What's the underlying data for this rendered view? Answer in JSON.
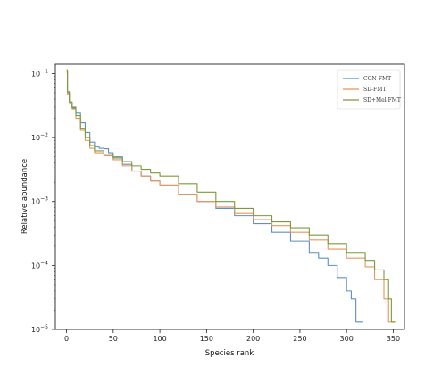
{
  "chart_data": {
    "type": "line",
    "xlabel": "Species rank",
    "ylabel": "Relative abundance",
    "xlim": [
      -12,
      362
    ],
    "ylim": [
      1e-05,
      0.14
    ],
    "yscale": "log",
    "x_ticks": [
      0,
      50,
      100,
      150,
      200,
      250,
      300,
      350
    ],
    "y_ticks": [
      {
        "value": 1e-05,
        "base": "10",
        "exp": "−5"
      },
      {
        "value": 0.0001,
        "base": "10",
        "exp": "−4"
      },
      {
        "value": 0.001,
        "base": "10",
        "exp": "−3"
      },
      {
        "value": 0.01,
        "base": "10",
        "exp": "−2"
      },
      {
        "value": 0.1,
        "base": "10",
        "exp": "−1"
      }
    ],
    "grid": false,
    "legend_position": "top-right",
    "series": [
      {
        "name": "CON-FMT",
        "color": "#5b8fc7",
        "points": [
          [
            0,
            0.11
          ],
          [
            1,
            0.05
          ],
          [
            3,
            0.036
          ],
          [
            6,
            0.03
          ],
          [
            10,
            0.024
          ],
          [
            15,
            0.017
          ],
          [
            20,
            0.012
          ],
          [
            25,
            0.0085
          ],
          [
            30,
            0.0072
          ],
          [
            35,
            0.0068
          ],
          [
            40,
            0.0067
          ],
          [
            45,
            0.0058
          ],
          [
            50,
            0.005
          ],
          [
            60,
            0.0038
          ],
          [
            70,
            0.003
          ],
          [
            80,
            0.0025
          ],
          [
            90,
            0.0021
          ],
          [
            100,
            0.0018
          ],
          [
            120,
            0.0013
          ],
          [
            140,
            0.001
          ],
          [
            160,
            0.00078
          ],
          [
            180,
            0.0006
          ],
          [
            200,
            0.00045
          ],
          [
            220,
            0.00033
          ],
          [
            240,
            0.00024
          ],
          [
            260,
            0.00016
          ],
          [
            270,
            0.00013
          ],
          [
            280,
            0.0001
          ],
          [
            290,
            6.5e-05
          ],
          [
            300,
            4e-05
          ],
          [
            305,
            3e-05
          ],
          [
            310,
            1.3e-05
          ],
          [
            318,
            1.3e-05
          ]
        ]
      },
      {
        "name": "SD-FMT",
        "color": "#e8955a",
        "points": [
          [
            0,
            0.105
          ],
          [
            1,
            0.048
          ],
          [
            3,
            0.035
          ],
          [
            6,
            0.028
          ],
          [
            10,
            0.02
          ],
          [
            15,
            0.013
          ],
          [
            20,
            0.009
          ],
          [
            25,
            0.0068
          ],
          [
            30,
            0.0058
          ],
          [
            40,
            0.0052
          ],
          [
            50,
            0.0045
          ],
          [
            60,
            0.0036
          ],
          [
            70,
            0.003
          ],
          [
            80,
            0.0025
          ],
          [
            90,
            0.0021
          ],
          [
            100,
            0.0018
          ],
          [
            120,
            0.0013
          ],
          [
            140,
            0.001
          ],
          [
            160,
            0.00082
          ],
          [
            180,
            0.00065
          ],
          [
            200,
            0.00052
          ],
          [
            220,
            0.00042
          ],
          [
            240,
            0.00033
          ],
          [
            260,
            0.00025
          ],
          [
            280,
            0.00018
          ],
          [
            300,
            0.00013
          ],
          [
            320,
            9.5e-05
          ],
          [
            330,
            6e-05
          ],
          [
            340,
            3e-05
          ],
          [
            345,
            1.3e-05
          ],
          [
            352,
            1.3e-05
          ]
        ]
      },
      {
        "name": "SD+Mel-FMT",
        "color": "#7a9a3c",
        "points": [
          [
            0,
            0.115
          ],
          [
            1,
            0.052
          ],
          [
            3,
            0.036
          ],
          [
            6,
            0.029
          ],
          [
            10,
            0.022
          ],
          [
            15,
            0.014
          ],
          [
            20,
            0.01
          ],
          [
            25,
            0.0075
          ],
          [
            30,
            0.0062
          ],
          [
            40,
            0.0055
          ],
          [
            50,
            0.0048
          ],
          [
            60,
            0.0042
          ],
          [
            70,
            0.0036
          ],
          [
            80,
            0.0032
          ],
          [
            90,
            0.0028
          ],
          [
            100,
            0.0025
          ],
          [
            120,
            0.0019
          ],
          [
            140,
            0.0014
          ],
          [
            160,
            0.001
          ],
          [
            180,
            0.00078
          ],
          [
            200,
            0.0006
          ],
          [
            220,
            0.00048
          ],
          [
            240,
            0.00039
          ],
          [
            260,
            0.0003
          ],
          [
            280,
            0.00022
          ],
          [
            300,
            0.00016
          ],
          [
            320,
            0.00012
          ],
          [
            330,
            8.5e-05
          ],
          [
            340,
            6e-05
          ],
          [
            345,
            3e-05
          ],
          [
            348,
            1.3e-05
          ],
          [
            352,
            1.3e-05
          ]
        ]
      }
    ]
  }
}
